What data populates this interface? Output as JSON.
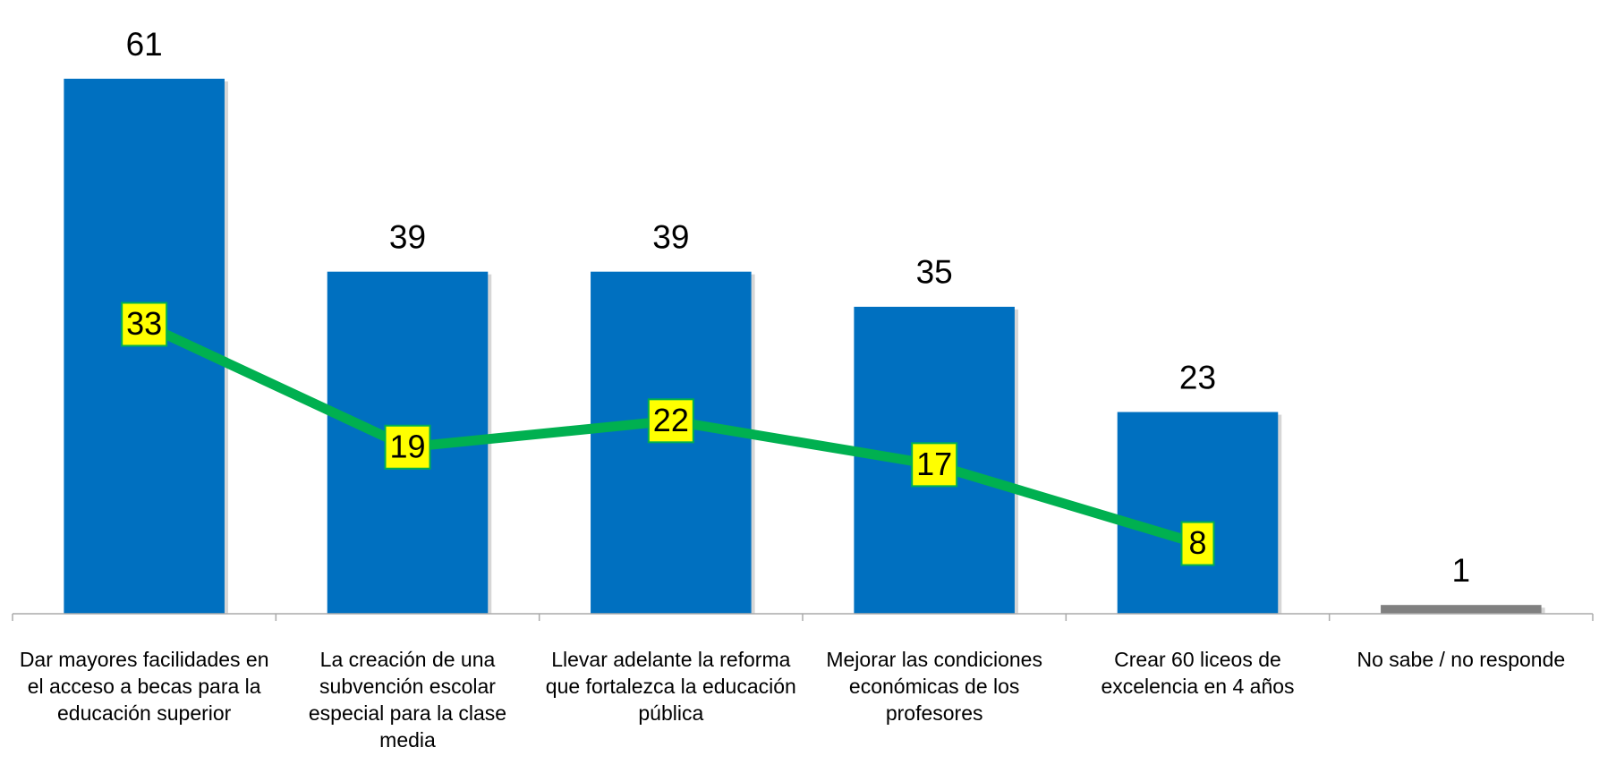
{
  "chart_data": {
    "type": "bar",
    "categories": [
      "Dar mayores facilidades en el acceso a becas para la educación superior",
      "La creación de una subvención escolar especial para la clase media",
      "Llevar adelante la reforma que fortalezca la educación pública",
      "Mejorar las condiciones económicas de los profesores",
      "Crear 60 liceos de excelencia en 4 años",
      "No sabe / no responde"
    ],
    "series": [
      {
        "type": "bar",
        "values": [
          61,
          39,
          39,
          35,
          23,
          1
        ],
        "colors": [
          "#0070c0",
          "#0070c0",
          "#0070c0",
          "#0070c0",
          "#0070c0",
          "#808080"
        ]
      },
      {
        "type": "line",
        "color": "#00b050",
        "label_fill": "#ffff00",
        "values": [
          33,
          19,
          22,
          17,
          8,
          null
        ]
      }
    ]
  }
}
